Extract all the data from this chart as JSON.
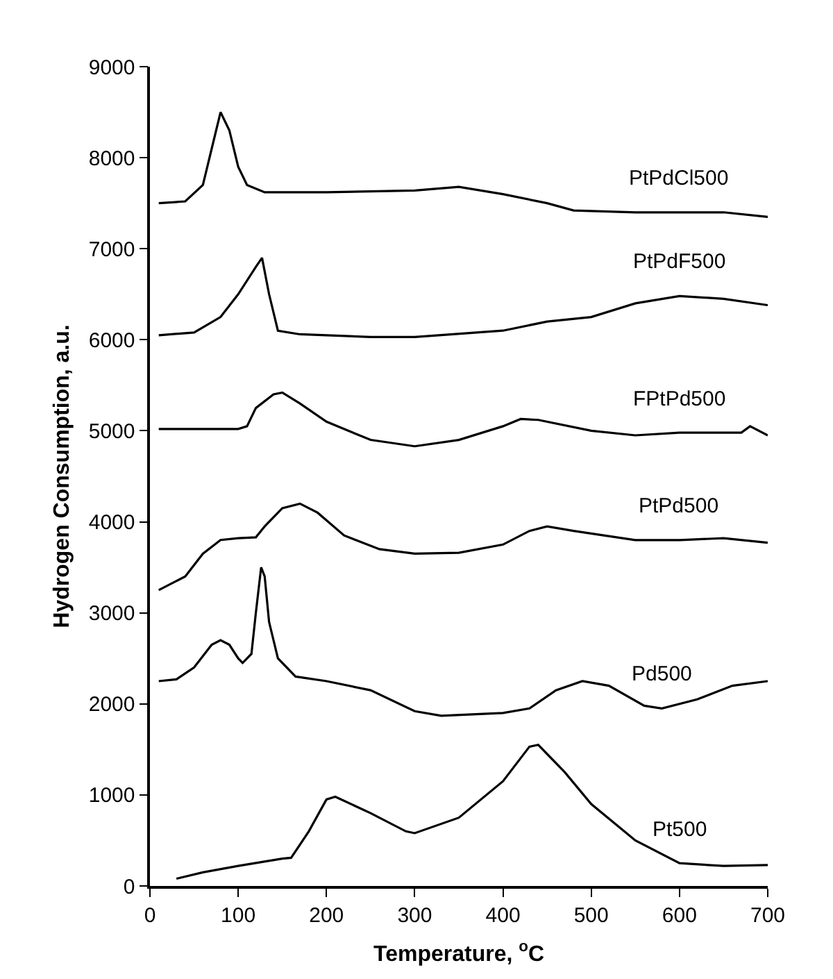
{
  "chart_data": {
    "type": "line",
    "xlabel": "Temperature, $^{o}$C",
    "ylabel": "Hydrogen Consumption, a.u.",
    "xlim": [
      0,
      700
    ],
    "xticks": [
      0,
      100,
      200,
      300,
      400,
      500,
      600,
      700
    ],
    "ylim": [
      0,
      9000
    ],
    "yticks": [
      0,
      1000,
      2000,
      3000,
      4000,
      5000,
      6000,
      7000,
      8000,
      9000
    ],
    "grid": false,
    "legend": false,
    "marker": "none",
    "line_style": "solid",
    "series": [
      {
        "name": "PtPdCl500",
        "color": "#000000",
        "x": [
          10,
          40,
          60,
          70,
          80,
          90,
          100,
          110,
          130,
          200,
          300,
          350,
          400,
          450,
          480,
          550,
          600,
          650,
          700
        ],
        "values": [
          7500,
          7520,
          7700,
          8100,
          8500,
          8300,
          7900,
          7700,
          7620,
          7620,
          7640,
          7680,
          7600,
          7500,
          7420,
          7400,
          7400,
          7400,
          7350
        ]
      },
      {
        "name": "PtPdF500",
        "color": "#000000",
        "x": [
          10,
          50,
          80,
          100,
          120,
          127,
          135,
          145,
          170,
          250,
          300,
          400,
          450,
          500,
          550,
          600,
          650,
          700
        ],
        "values": [
          6050,
          6080,
          6250,
          6500,
          6800,
          6900,
          6500,
          6100,
          6060,
          6030,
          6030,
          6100,
          6200,
          6250,
          6400,
          6480,
          6450,
          6380
        ]
      },
      {
        "name": "FPtPd500",
        "color": "#000000",
        "x": [
          10,
          100,
          110,
          120,
          140,
          150,
          170,
          200,
          250,
          300,
          350,
          400,
          420,
          440,
          500,
          550,
          600,
          670,
          680,
          700
        ],
        "values": [
          5020,
          5020,
          5050,
          5250,
          5400,
          5420,
          5300,
          5100,
          4900,
          4830,
          4900,
          5050,
          5130,
          5120,
          5000,
          4950,
          4980,
          4980,
          5050,
          4950
        ]
      },
      {
        "name": "PtPd500",
        "color": "#000000",
        "x": [
          10,
          40,
          60,
          80,
          100,
          120,
          130,
          150,
          170,
          190,
          220,
          260,
          300,
          350,
          400,
          430,
          450,
          480,
          550,
          600,
          650,
          700
        ],
        "values": [
          3250,
          3400,
          3650,
          3800,
          3820,
          3830,
          3950,
          4150,
          4200,
          4100,
          3850,
          3700,
          3650,
          3660,
          3750,
          3900,
          3950,
          3900,
          3800,
          3800,
          3820,
          3770
        ]
      },
      {
        "name": "Pd500",
        "color": "#000000",
        "x": [
          10,
          30,
          50,
          70,
          80,
          90,
          100,
          105,
          115,
          120,
          126,
          130,
          135,
          145,
          165,
          200,
          250,
          300,
          330,
          400,
          430,
          460,
          490,
          520,
          560,
          580,
          620,
          660,
          700
        ],
        "values": [
          2250,
          2270,
          2400,
          2650,
          2700,
          2650,
          2500,
          2450,
          2550,
          3000,
          3500,
          3400,
          2900,
          2500,
          2300,
          2250,
          2150,
          1920,
          1870,
          1900,
          1950,
          2150,
          2250,
          2200,
          1980,
          1950,
          2050,
          2200,
          2250
        ]
      },
      {
        "name": "Pt500",
        "color": "#000000",
        "x": [
          30,
          60,
          100,
          150,
          160,
          180,
          200,
          210,
          250,
          290,
          300,
          350,
          400,
          430,
          440,
          470,
          500,
          550,
          600,
          650,
          700
        ],
        "values": [
          80,
          150,
          220,
          300,
          310,
          600,
          950,
          980,
          800,
          600,
          580,
          750,
          1150,
          1530,
          1550,
          1250,
          900,
          500,
          250,
          220,
          230
        ]
      }
    ]
  }
}
